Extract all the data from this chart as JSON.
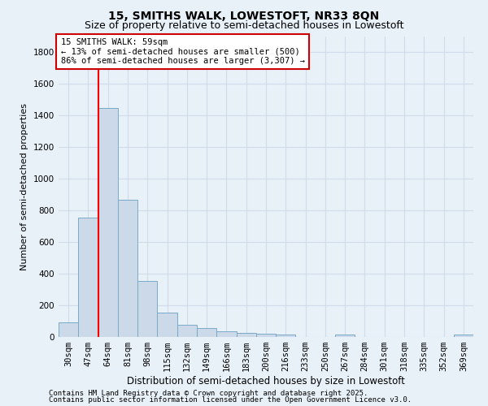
{
  "title1": "15, SMITHS WALK, LOWESTOFT, NR33 8QN",
  "title2": "Size of property relative to semi-detached houses in Lowestoft",
  "xlabel": "Distribution of semi-detached houses by size in Lowestoft",
  "ylabel": "Number of semi-detached properties",
  "annotation_title": "15 SMITHS WALK: 59sqm",
  "annotation_line1": "← 13% of semi-detached houses are smaller (500)",
  "annotation_line2": "86% of semi-detached houses are larger (3,307) →",
  "footnote1": "Contains HM Land Registry data © Crown copyright and database right 2025.",
  "footnote2": "Contains public sector information licensed under the Open Government Licence v3.0.",
  "categories": [
    "30sqm",
    "47sqm",
    "64sqm",
    "81sqm",
    "98sqm",
    "115sqm",
    "132sqm",
    "149sqm",
    "166sqm",
    "183sqm",
    "200sqm",
    "216sqm",
    "233sqm",
    "250sqm",
    "267sqm",
    "284sqm",
    "301sqm",
    "318sqm",
    "335sqm",
    "352sqm",
    "369sqm"
  ],
  "values": [
    90,
    755,
    1450,
    870,
    355,
    155,
    75,
    55,
    35,
    25,
    20,
    15,
    0,
    0,
    15,
    0,
    0,
    0,
    0,
    0,
    15
  ],
  "bar_color": "#ccd9e8",
  "bar_edge_color": "#7aaac8",
  "property_line_x": 1.5,
  "ylim": [
    0,
    1900
  ],
  "yticks": [
    0,
    200,
    400,
    600,
    800,
    1000,
    1200,
    1400,
    1600,
    1800
  ],
  "background_color": "#e8f0f8",
  "grid_color": "#d0dce8",
  "annotation_box_color": "#ffffff",
  "annotation_box_edge": "#cc0000",
  "title1_fontsize": 10,
  "title2_fontsize": 9,
  "xlabel_fontsize": 8.5,
  "ylabel_fontsize": 8,
  "tick_fontsize": 7.5,
  "annotation_fontsize": 7.5,
  "footnote_fontsize": 6.5
}
